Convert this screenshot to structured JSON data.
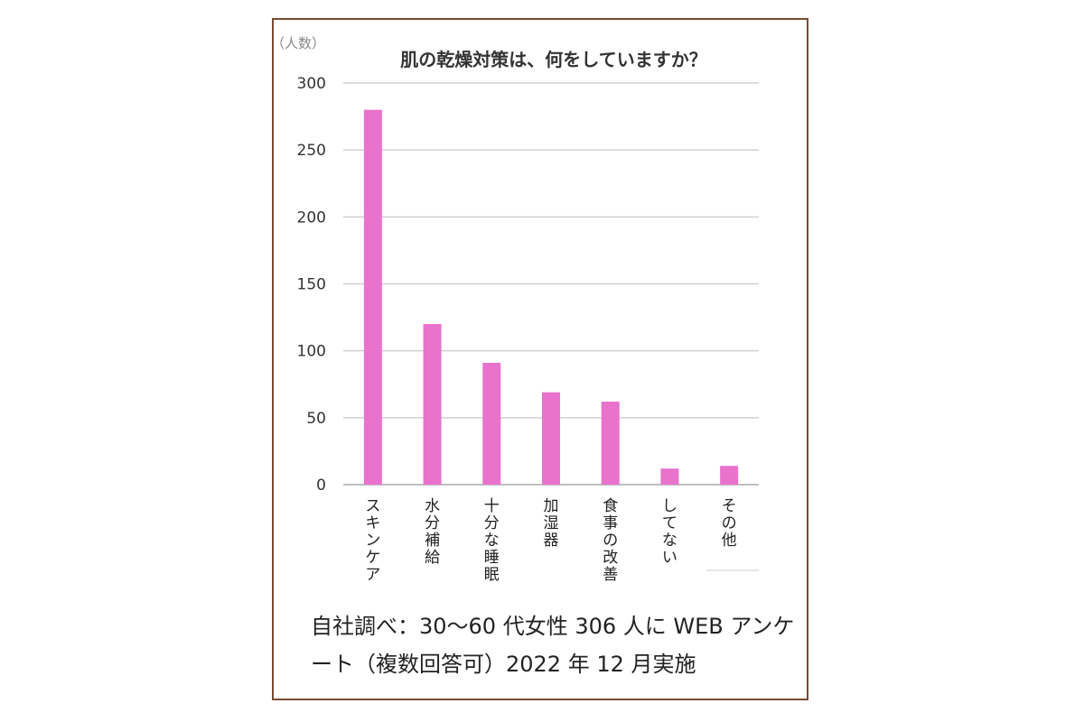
{
  "chart_data": {
    "type": "bar",
    "title": "肌の乾燥対策は、何をしていますか？",
    "ylabel": "（人数）",
    "categories": [
      "スキンケア",
      "水分補給",
      "十分な睡眠",
      "加湿器",
      "食事の改善",
      "してない",
      "その他"
    ],
    "values": [
      280,
      120,
      91,
      69,
      62,
      12,
      14
    ],
    "ylim": [
      0,
      300
    ],
    "yticks": [
      0,
      50,
      100,
      150,
      200,
      250,
      300
    ],
    "grid": true,
    "bar_color": "#e872cc"
  },
  "source_note": {
    "line1": "自社調べ：30〜60 代女性 306 人に WEB アンケ",
    "line2": "ート（複数回答可）2022 年 12 月実施"
  }
}
